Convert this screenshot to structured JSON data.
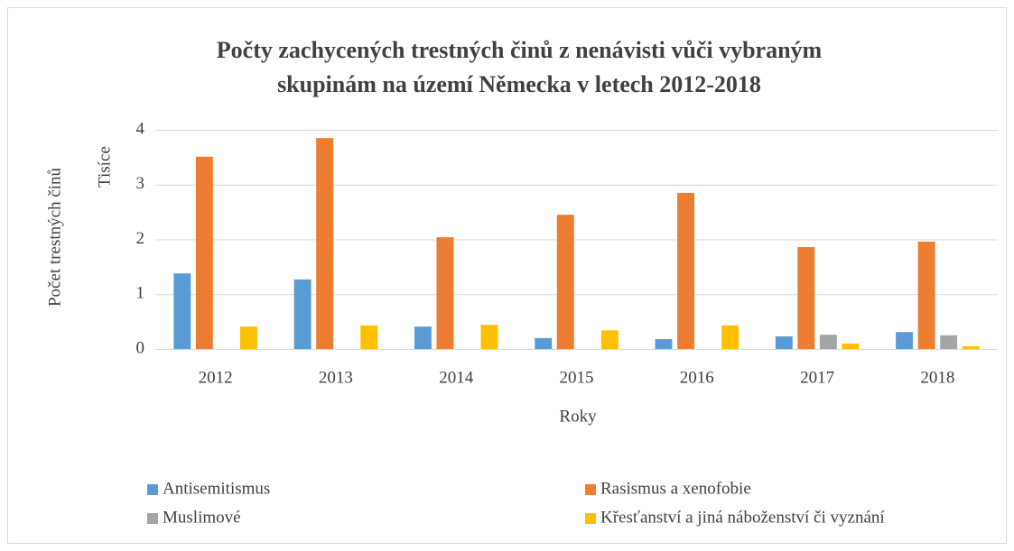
{
  "chart_data": {
    "type": "bar",
    "title": [
      "Počty zachycených trestných činů z nenávisti vůči vybraným",
      "skupinám na území Německa v letech 2012-2018"
    ],
    "y_label": "Počet trestných činů",
    "y_unit": "Tisíce",
    "x_label": "Roky",
    "categories": [
      "2012",
      "2013",
      "2014",
      "2015",
      "2016",
      "2017",
      "2018"
    ],
    "series": [
      {
        "name": "Antisemitismus",
        "color": "#5b9bd5",
        "values": [
          1.38,
          1.27,
          0.41,
          0.2,
          0.18,
          0.23,
          0.31
        ]
      },
      {
        "name": "Rasismus a xenofobie",
        "color": "#ed7d31",
        "values": [
          3.51,
          3.85,
          2.04,
          2.45,
          2.85,
          1.86,
          1.96
        ]
      },
      {
        "name": "Muslimové",
        "color": "#a5a5a5",
        "values": [
          null,
          null,
          null,
          null,
          null,
          0.26,
          0.25
        ]
      },
      {
        "name": "Křesťanství a jiná náboženství či vyznání",
        "color": "#ffc000",
        "values": [
          0.41,
          0.43,
          0.44,
          0.34,
          0.43,
          0.1,
          0.05
        ]
      }
    ],
    "ylim": [
      0,
      4
    ],
    "yticks": [
      0,
      1,
      2,
      3,
      4
    ],
    "grid": true
  }
}
